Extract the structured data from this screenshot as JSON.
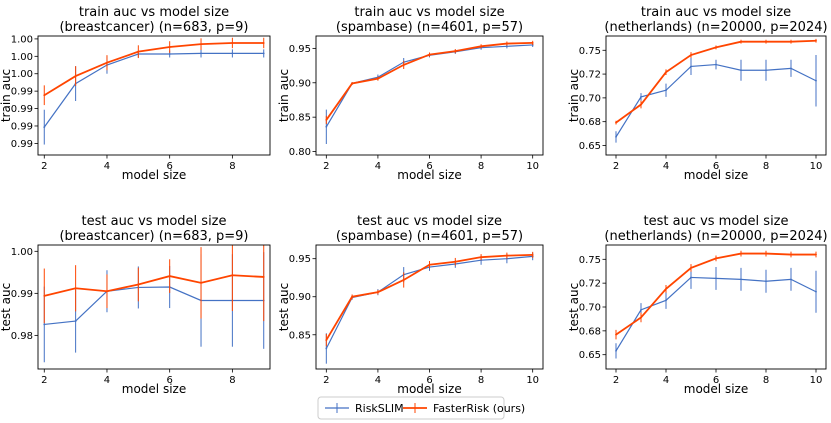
{
  "colors": {
    "riskslim": "#4472c4",
    "fasterrisk": "#ff4500"
  },
  "legend": {
    "items": [
      "RiskSLIM",
      "FasterRisk (ours)"
    ],
    "placement": "bottom-center"
  },
  "chart_data": [
    {
      "type": "line",
      "title": "train auc vs model size",
      "subtitle": "(breastcancer) (n=683, p=9)",
      "xlabel": "model size",
      "ylabel": "train auc",
      "xlim": [
        1.8,
        9.2
      ],
      "ylim": [
        0.983,
        1.0035
      ],
      "x_ticks": [
        2,
        4,
        6,
        8
      ],
      "y_ticks": [
        0.985,
        0.988,
        0.991,
        0.994,
        0.997,
        1.0,
        1.003
      ],
      "y_tick_labels": [
        "0.99",
        "0.99",
        "0.99",
        "0.99",
        "1.00",
        "1.00",
        "1.00"
      ],
      "x": [
        2,
        3,
        4,
        5,
        6,
        7,
        8,
        9
      ],
      "series": [
        {
          "name": "RiskSLIM",
          "color_key": "riskslim",
          "values": [
            0.9878,
            0.9953,
            0.9985,
            1.0004,
            1.0004,
            1.0005,
            1.0005,
            1.0005
          ],
          "errors": [
            0.003,
            0.003,
            0.0015,
            0.0006,
            0.0006,
            0.0007,
            0.0007,
            0.0007
          ]
        },
        {
          "name": "FasterRisk (ours)",
          "color_key": "fasterrisk",
          "values": [
            0.9933,
            0.9966,
            0.9989,
            1.0008,
            1.0016,
            1.0021,
            1.0023,
            1.0023
          ],
          "errors": [
            0.0017,
            0.0017,
            0.0013,
            0.0011,
            0.001,
            0.001,
            0.0009,
            0.0009
          ]
        }
      ]
    },
    {
      "type": "line",
      "title": "train auc vs model size",
      "subtitle": "(spambase) (n=4601, p=57)",
      "xlabel": "model size",
      "ylabel": "train auc",
      "xlim": [
        1.6,
        10.4
      ],
      "ylim": [
        0.795,
        0.968
      ],
      "x_ticks": [
        2,
        4,
        6,
        8,
        10
      ],
      "y_ticks": [
        0.8,
        0.85,
        0.9,
        0.95
      ],
      "y_tick_labels": [
        "0.80",
        "0.85",
        "0.90",
        "0.95"
      ],
      "x": [
        2,
        3,
        4,
        5,
        6,
        7,
        8,
        9,
        10
      ],
      "series": [
        {
          "name": "RiskSLIM",
          "color_key": "riskslim",
          "values": [
            0.836,
            0.899,
            0.908,
            0.93,
            0.94,
            0.945,
            0.951,
            0.953,
            0.955
          ],
          "errors": [
            0.025,
            0.002,
            0.004,
            0.006,
            0.003,
            0.003,
            0.003,
            0.003,
            0.003
          ]
        },
        {
          "name": "FasterRisk (ours)",
          "color_key": "fasterrisk",
          "values": [
            0.846,
            0.899,
            0.906,
            0.926,
            0.941,
            0.946,
            0.953,
            0.957,
            0.958
          ],
          "errors": [
            0.006,
            0.002,
            0.003,
            0.006,
            0.003,
            0.003,
            0.003,
            0.003,
            0.003
          ]
        }
      ]
    },
    {
      "type": "line",
      "title": "train auc vs model size",
      "subtitle": "(netherlands) (n=20000, p=2024)",
      "xlabel": "model size",
      "ylabel": "train auc",
      "xlim": [
        1.6,
        10.4
      ],
      "ylim": [
        0.64,
        0.765
      ],
      "x_ticks": [
        2,
        4,
        6,
        8,
        10
      ],
      "y_ticks": [
        0.65,
        0.675,
        0.7,
        0.725,
        0.75
      ],
      "y_tick_labels": [
        "0.65",
        "0.68",
        "0.70",
        "0.72",
        "0.75"
      ],
      "x": [
        2,
        3,
        4,
        5,
        6,
        7,
        8,
        9,
        10
      ],
      "series": [
        {
          "name": "RiskSLIM",
          "color_key": "riskslim",
          "values": [
            0.659,
            0.701,
            0.708,
            0.733,
            0.735,
            0.729,
            0.729,
            0.731,
            0.718
          ],
          "errors": [
            0.006,
            0.004,
            0.007,
            0.009,
            0.005,
            0.011,
            0.011,
            0.009,
            0.027
          ]
        },
        {
          "name": "FasterRisk (ours)",
          "color_key": "fasterrisk",
          "values": [
            0.674,
            0.693,
            0.727,
            0.745,
            0.753,
            0.759,
            0.759,
            0.759,
            0.76
          ],
          "errors": [
            0.002,
            0.004,
            0.003,
            0.003,
            0.002,
            0.002,
            0.002,
            0.002,
            0.002
          ]
        }
      ]
    },
    {
      "type": "line",
      "title": "test auc vs model size",
      "subtitle": "(breastcancer) (n=683, p=9)",
      "xlabel": "model size",
      "ylabel": "test auc",
      "xlim": [
        1.8,
        9.2
      ],
      "ylim": [
        0.972,
        1.0015
      ],
      "x_ticks": [
        2,
        4,
        6,
        8
      ],
      "y_ticks": [
        0.98,
        0.99,
        1.0
      ],
      "y_tick_labels": [
        "0.98",
        "0.99",
        "1.00"
      ],
      "x": [
        2,
        3,
        4,
        5,
        6,
        7,
        8,
        9
      ],
      "series": [
        {
          "name": "RiskSLIM",
          "color_key": "riskslim",
          "values": [
            0.9826,
            0.9834,
            0.9905,
            0.9914,
            0.9915,
            0.9883,
            0.9883,
            0.9883
          ],
          "errors": [
            0.009,
            0.0075,
            0.005,
            0.005,
            0.005,
            0.011,
            0.011,
            0.0115
          ]
        },
        {
          "name": "FasterRisk (ours)",
          "color_key": "fasterrisk",
          "values": [
            0.9894,
            0.9912,
            0.9905,
            0.9921,
            0.9941,
            0.9925,
            0.9943,
            0.9939
          ],
          "errors": [
            0.0065,
            0.0055,
            0.004,
            0.004,
            0.004,
            0.0085,
            0.0085,
            0.0105
          ]
        }
      ]
    },
    {
      "type": "line",
      "title": "test auc vs model size",
      "subtitle": "(spambase) (n=4601, p=57)",
      "xlabel": "model size",
      "ylabel": "test auc",
      "xlim": [
        1.6,
        10.4
      ],
      "ylim": [
        0.805,
        0.968
      ],
      "x_ticks": [
        2,
        4,
        6,
        8,
        10
      ],
      "y_ticks": [
        0.85,
        0.9,
        0.95
      ],
      "y_tick_labels": [
        "0.85",
        "0.90",
        "0.95"
      ],
      "x": [
        2,
        3,
        4,
        5,
        6,
        7,
        8,
        9,
        10
      ],
      "series": [
        {
          "name": "RiskSLIM",
          "color_key": "riskslim",
          "values": [
            0.832,
            0.899,
            0.906,
            0.929,
            0.939,
            0.943,
            0.948,
            0.95,
            0.953
          ],
          "errors": [
            0.02,
            0.003,
            0.004,
            0.01,
            0.005,
            0.005,
            0.006,
            0.006,
            0.005
          ]
        },
        {
          "name": "FasterRisk (ours)",
          "color_key": "fasterrisk",
          "values": [
            0.843,
            0.9,
            0.906,
            0.922,
            0.942,
            0.946,
            0.952,
            0.954,
            0.955
          ],
          "errors": [
            0.008,
            0.003,
            0.003,
            0.01,
            0.005,
            0.005,
            0.004,
            0.004,
            0.004
          ]
        }
      ]
    },
    {
      "type": "line",
      "title": "test auc vs model size",
      "subtitle": "(netherlands) (n=20000, p=2024)",
      "xlabel": "model size",
      "ylabel": "test auc",
      "xlim": [
        1.6,
        10.4
      ],
      "ylim": [
        0.635,
        0.765
      ],
      "x_ticks": [
        2,
        4,
        6,
        8,
        10
      ],
      "y_ticks": [
        0.65,
        0.675,
        0.7,
        0.725,
        0.75
      ],
      "y_tick_labels": [
        "0.65",
        "0.68",
        "0.70",
        "0.72",
        "0.75"
      ],
      "x": [
        2,
        3,
        4,
        5,
        6,
        7,
        8,
        9,
        10
      ],
      "series": [
        {
          "name": "RiskSLIM",
          "color_key": "riskslim",
          "values": [
            0.654,
            0.697,
            0.707,
            0.731,
            0.73,
            0.729,
            0.727,
            0.729,
            0.716
          ],
          "errors": [
            0.008,
            0.007,
            0.009,
            0.012,
            0.012,
            0.012,
            0.012,
            0.012,
            0.022
          ]
        },
        {
          "name": "FasterRisk (ours)",
          "color_key": "fasterrisk",
          "values": [
            0.671,
            0.689,
            0.719,
            0.741,
            0.751,
            0.756,
            0.756,
            0.755,
            0.755
          ],
          "errors": [
            0.005,
            0.005,
            0.004,
            0.004,
            0.003,
            0.003,
            0.003,
            0.003,
            0.003
          ]
        }
      ]
    }
  ]
}
